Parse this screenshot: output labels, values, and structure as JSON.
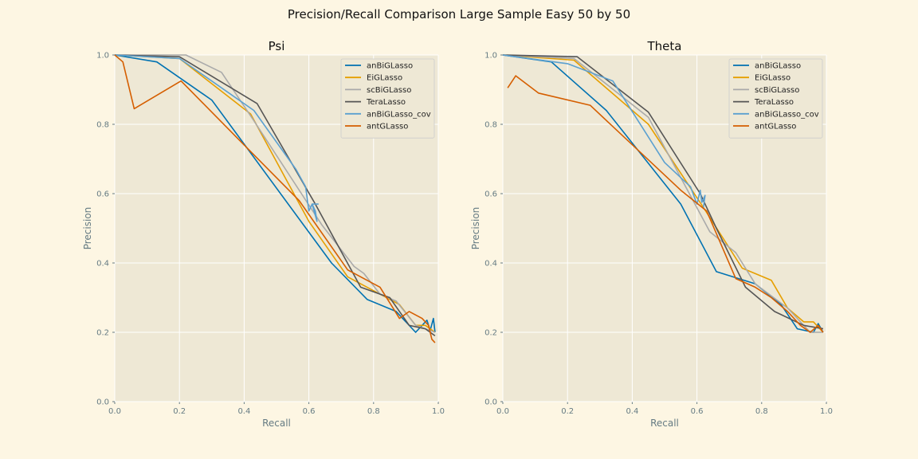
{
  "suptitle": "Precision/Recall Comparison Large Sample Easy 50 by 50",
  "colors": {
    "background": "#fdf6e3",
    "plot_bg": "#eee8d5",
    "grid": "#ffffff",
    "axis_text": "#657b83"
  },
  "chart_data": [
    {
      "type": "line",
      "title": "Psi",
      "xlabel": "Recall",
      "ylabel": "Precision",
      "xlim": [
        0,
        1
      ],
      "ylim": [
        0,
        1
      ],
      "xticks": [
        "0.0",
        "0.2",
        "0.4",
        "0.6",
        "0.8",
        "1.0"
      ],
      "yticks": [
        "0.0",
        "0.2",
        "0.4",
        "0.6",
        "0.8",
        "1.0"
      ],
      "grid": true,
      "legend_position": "top-right",
      "series": [
        {
          "name": "anBiGLasso",
          "color": "#0072b2",
          "points": [
            [
              0.0,
              1.0
            ],
            [
              0.13,
              0.98
            ],
            [
              0.3,
              0.87
            ],
            [
              0.67,
              0.4
            ],
            [
              0.78,
              0.295
            ],
            [
              0.87,
              0.26
            ],
            [
              0.93,
              0.2
            ],
            [
              0.965,
              0.235
            ],
            [
              0.975,
              0.205
            ],
            [
              0.985,
              0.24
            ],
            [
              0.99,
              0.2
            ]
          ]
        },
        {
          "name": "EiGLasso",
          "color": "#e69f00",
          "points": [
            [
              0.0,
              1.0
            ],
            [
              0.2,
              0.99
            ],
            [
              0.42,
              0.83
            ],
            [
              0.6,
              0.52
            ],
            [
              0.72,
              0.36
            ],
            [
              0.8,
              0.32
            ],
            [
              0.88,
              0.28
            ],
            [
              0.93,
              0.22
            ],
            [
              0.96,
              0.22
            ],
            [
              0.99,
              0.2
            ]
          ]
        },
        {
          "name": "scBiGLasso",
          "color": "#aaaaaa",
          "points": [
            [
              0.0,
              1.0
            ],
            [
              0.22,
              1.0
            ],
            [
              0.33,
              0.95
            ],
            [
              0.43,
              0.81
            ],
            [
              0.64,
              0.51
            ],
            [
              0.74,
              0.39
            ],
            [
              0.77,
              0.37
            ],
            [
              0.82,
              0.31
            ],
            [
              0.87,
              0.29
            ],
            [
              0.93,
              0.22
            ],
            [
              0.99,
              0.2
            ]
          ]
        },
        {
          "name": "TeraLasso",
          "color": "#555555",
          "points": [
            [
              0.0,
              1.0
            ],
            [
              0.2,
              0.995
            ],
            [
              0.44,
              0.86
            ],
            [
              0.62,
              0.57
            ],
            [
              0.76,
              0.33
            ],
            [
              0.85,
              0.3
            ],
            [
              0.91,
              0.22
            ],
            [
              0.96,
              0.21
            ],
            [
              0.99,
              0.19
            ]
          ]
        },
        {
          "name": "anBiGLasso_cov",
          "color": "#5ba0d0",
          "points": [
            [
              0.0,
              1.0
            ],
            [
              0.2,
              0.99
            ],
            [
              0.43,
              0.84
            ],
            [
              0.56,
              0.67
            ],
            [
              0.59,
              0.62
            ],
            [
              0.6,
              0.55
            ],
            [
              0.61,
              0.57
            ],
            [
              0.62,
              0.55
            ],
            [
              0.625,
              0.52
            ],
            [
              0.61,
              0.57
            ],
            [
              0.63,
              0.57
            ]
          ]
        },
        {
          "name": "antGLasso",
          "color": "#d55e00",
          "points": [
            [
              0.0,
              1.0
            ],
            [
              0.025,
              0.98
            ],
            [
              0.06,
              0.845
            ],
            [
              0.205,
              0.925
            ],
            [
              0.39,
              0.75
            ],
            [
              0.57,
              0.58
            ],
            [
              0.72,
              0.38
            ],
            [
              0.82,
              0.33
            ],
            [
              0.88,
              0.24
            ],
            [
              0.91,
              0.26
            ],
            [
              0.95,
              0.24
            ],
            [
              0.97,
              0.22
            ],
            [
              0.98,
              0.18
            ],
            [
              0.99,
              0.17
            ]
          ]
        }
      ]
    },
    {
      "type": "line",
      "title": "Theta",
      "xlabel": "Recall",
      "ylabel": "Precision",
      "xlim": [
        0,
        1
      ],
      "ylim": [
        0,
        1
      ],
      "xticks": [
        "0.0",
        "0.2",
        "0.4",
        "0.6",
        "0.8",
        "1.0"
      ],
      "yticks": [
        "0.0",
        "0.2",
        "0.4",
        "0.6",
        "0.8",
        "1.0"
      ],
      "grid": true,
      "legend_position": "top-right",
      "series": [
        {
          "name": "anBiGLasso",
          "color": "#0072b2",
          "points": [
            [
              0.0,
              1.0
            ],
            [
              0.15,
              0.98
            ],
            [
              0.32,
              0.84
            ],
            [
              0.55,
              0.57
            ],
            [
              0.66,
              0.375
            ],
            [
              0.78,
              0.34
            ],
            [
              0.86,
              0.28
            ],
            [
              0.91,
              0.21
            ],
            [
              0.96,
              0.2
            ],
            [
              0.975,
              0.225
            ],
            [
              0.99,
              0.2
            ]
          ]
        },
        {
          "name": "EiGLasso",
          "color": "#e69f00",
          "points": [
            [
              0.0,
              1.0
            ],
            [
              0.22,
              0.985
            ],
            [
              0.45,
              0.8
            ],
            [
              0.62,
              0.56
            ],
            [
              0.74,
              0.385
            ],
            [
              0.83,
              0.35
            ],
            [
              0.88,
              0.27
            ],
            [
              0.93,
              0.23
            ],
            [
              0.96,
              0.23
            ],
            [
              0.99,
              0.2
            ]
          ]
        },
        {
          "name": "scBiGLasso",
          "color": "#aaaaaa",
          "points": [
            [
              0.0,
              1.0
            ],
            [
              0.22,
              0.99
            ],
            [
              0.45,
              0.82
            ],
            [
              0.64,
              0.49
            ],
            [
              0.72,
              0.43
            ],
            [
              0.78,
              0.34
            ],
            [
              0.88,
              0.27
            ],
            [
              0.95,
              0.2
            ],
            [
              0.99,
              0.2
            ]
          ]
        },
        {
          "name": "TeraLasso",
          "color": "#555555",
          "points": [
            [
              0.0,
              1.0
            ],
            [
              0.23,
              0.995
            ],
            [
              0.45,
              0.835
            ],
            [
              0.61,
              0.6
            ],
            [
              0.66,
              0.5
            ],
            [
              0.75,
              0.33
            ],
            [
              0.84,
              0.26
            ],
            [
              0.93,
              0.22
            ],
            [
              0.99,
              0.21
            ]
          ]
        },
        {
          "name": "anBiGLasso_cov",
          "color": "#5ba0d0",
          "points": [
            [
              0.0,
              1.0
            ],
            [
              0.2,
              0.975
            ],
            [
              0.34,
              0.925
            ],
            [
              0.5,
              0.69
            ],
            [
              0.58,
              0.62
            ],
            [
              0.6,
              0.57
            ],
            [
              0.61,
              0.61
            ],
            [
              0.615,
              0.575
            ],
            [
              0.625,
              0.595
            ],
            [
              0.62,
              0.56
            ]
          ]
        },
        {
          "name": "antGLasso",
          "color": "#d55e00",
          "points": [
            [
              0.015,
              0.905
            ],
            [
              0.04,
              0.94
            ],
            [
              0.11,
              0.89
            ],
            [
              0.27,
              0.855
            ],
            [
              0.55,
              0.61
            ],
            [
              0.63,
              0.55
            ],
            [
              0.72,
              0.355
            ],
            [
              0.78,
              0.33
            ],
            [
              0.83,
              0.3
            ],
            [
              0.88,
              0.26
            ],
            [
              0.92,
              0.22
            ],
            [
              0.95,
              0.2
            ],
            [
              0.975,
              0.22
            ],
            [
              0.99,
              0.2
            ]
          ]
        }
      ]
    }
  ]
}
